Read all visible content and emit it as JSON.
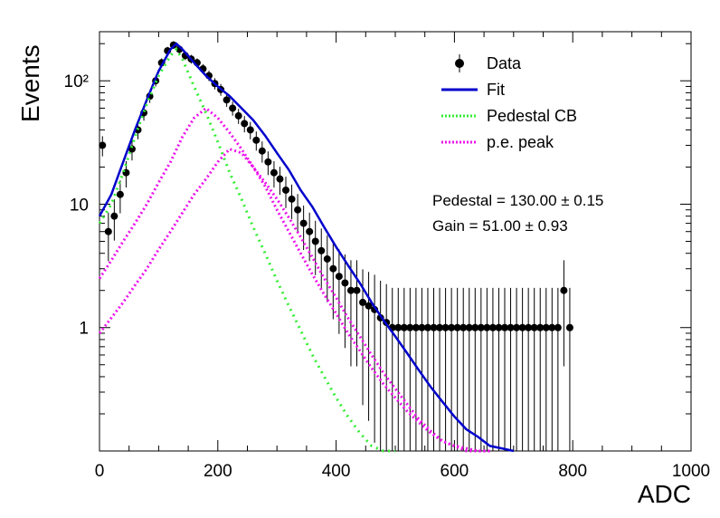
{
  "chart_data": {
    "type": "scatter",
    "xlabel": "ADC",
    "ylabel": "Events",
    "xlim": [
      0,
      1000
    ],
    "ylim": [
      0.1,
      250
    ],
    "y_scale": "log",
    "x_ticks": [
      "0",
      "200",
      "400",
      "600",
      "800",
      "1000"
    ],
    "y_ticks": [
      "1",
      "10",
      "10²"
    ],
    "legend_position": "top-right",
    "legend": [
      {
        "label": "Data",
        "style": "marker",
        "color": "#000000"
      },
      {
        "label": "Fit",
        "style": "solid",
        "color": "#0000cc"
      },
      {
        "label": "Pedestal CB",
        "style": "dotted",
        "color": "#33ee33"
      },
      {
        "label": "p.e. peak",
        "style": "dotted",
        "color": "#ee11ee"
      }
    ],
    "annotations": [
      "Pedestal = 130.00 ± 0.15",
      "Gain = 51.00 ± 0.93"
    ],
    "series": [
      {
        "name": "Data",
        "x": [
          5,
          15,
          25,
          35,
          45,
          55,
          65,
          75,
          85,
          95,
          105,
          115,
          125,
          135,
          145,
          155,
          165,
          175,
          185,
          195,
          205,
          215,
          225,
          235,
          245,
          255,
          265,
          275,
          285,
          295,
          305,
          315,
          325,
          335,
          345,
          355,
          365,
          375,
          385,
          395,
          405,
          415,
          425,
          435,
          445,
          455,
          465,
          475,
          485,
          495,
          505,
          515,
          525,
          535,
          545,
          555,
          565,
          575,
          585,
          595,
          605,
          615,
          625,
          635,
          645,
          655,
          665,
          675,
          685,
          695,
          705,
          715,
          725,
          735,
          745,
          755,
          765,
          775,
          785,
          795
        ],
        "y": [
          30,
          6,
          8,
          12,
          18,
          28,
          40,
          55,
          75,
          100,
          140,
          175,
          195,
          180,
          160,
          150,
          140,
          125,
          110,
          95,
          85,
          70,
          60,
          52,
          45,
          40,
          33,
          27,
          22,
          18,
          16,
          13,
          11,
          9,
          7,
          6,
          5,
          4.2,
          3.6,
          3,
          2.6,
          2.3,
          2,
          2,
          1.6,
          1.5,
          1.4,
          1.2,
          1.1,
          1,
          1,
          1,
          1,
          1,
          1,
          1,
          1,
          1,
          1,
          1,
          1,
          1,
          1,
          1,
          1,
          1,
          1,
          1,
          1,
          1,
          1,
          1,
          1,
          1,
          1,
          1,
          1,
          1,
          2,
          1
        ]
      },
      {
        "name": "Fit",
        "x": [
          0,
          20,
          40,
          60,
          80,
          100,
          120,
          130,
          140,
          160,
          180,
          200,
          220,
          240,
          260,
          280,
          300,
          320,
          340,
          360,
          380,
          400,
          420,
          440,
          460,
          480,
          500,
          520,
          540,
          560,
          580,
          600,
          620,
          640,
          660,
          680,
          700
        ],
        "y": [
          8,
          12,
          22,
          40,
          70,
          120,
          180,
          200,
          180,
          140,
          110,
          90,
          75,
          60,
          48,
          36,
          26,
          19,
          13,
          9.5,
          6.5,
          4.5,
          3.2,
          2.3,
          1.6,
          1.15,
          0.85,
          0.62,
          0.45,
          0.33,
          0.25,
          0.19,
          0.15,
          0.13,
          0.11,
          0.105,
          0.1
        ]
      },
      {
        "name": "Pedestal CB",
        "x": [
          0,
          20,
          40,
          60,
          80,
          100,
          120,
          130,
          140,
          160,
          180,
          200,
          220,
          240,
          260,
          280,
          300,
          320,
          340,
          360,
          380,
          400,
          420,
          440,
          460,
          480,
          500
        ],
        "y": [
          7,
          10,
          18,
          35,
          65,
          110,
          160,
          180,
          150,
          90,
          55,
          32,
          18,
          11,
          6.5,
          4,
          2.4,
          1.5,
          0.95,
          0.6,
          0.4,
          0.27,
          0.19,
          0.14,
          0.11,
          0.1,
          0.1
        ]
      },
      {
        "name": "p.e. peak",
        "x": [
          0,
          20,
          40,
          60,
          80,
          100,
          120,
          140,
          160,
          180,
          200,
          220,
          240,
          260,
          280,
          300,
          320,
          340,
          360,
          380,
          400,
          420,
          440,
          460,
          480,
          500,
          520,
          540,
          560,
          580,
          600,
          620,
          640,
          660
        ],
        "y": [
          2.5,
          3.5,
          5,
          7,
          10,
          15,
          22,
          35,
          50,
          60,
          50,
          38,
          28,
          20,
          14,
          9,
          6,
          4,
          2.7,
          1.85,
          1.3,
          0.9,
          0.65,
          0.47,
          0.35,
          0.27,
          0.21,
          0.17,
          0.14,
          0.12,
          0.11,
          0.105,
          0.1,
          0.1
        ]
      },
      {
        "name": "p.e. peak",
        "x": [
          0,
          20,
          40,
          60,
          80,
          100,
          120,
          140,
          160,
          180,
          200,
          220,
          240,
          260,
          280,
          300,
          320,
          340,
          360,
          380,
          400,
          420,
          440,
          460,
          480,
          500,
          520,
          540,
          560,
          580,
          600,
          620,
          640,
          660
        ],
        "y": [
          0.9,
          1.2,
          1.6,
          2.2,
          3,
          4.3,
          6,
          8.5,
          12,
          16,
          22,
          28,
          26,
          20,
          15,
          11,
          7.8,
          5.4,
          3.7,
          2.5,
          1.75,
          1.2,
          0.85,
          0.6,
          0.43,
          0.32,
          0.24,
          0.18,
          0.145,
          0.12,
          0.11,
          0.1,
          0.1,
          0.1
        ]
      }
    ]
  }
}
